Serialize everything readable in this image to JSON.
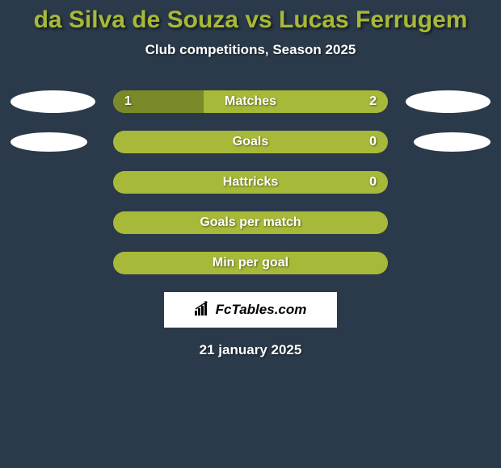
{
  "title": "da Silva de Souza vs Lucas Ferrugem",
  "subtitle": "Club competitions, Season 2025",
  "date": "21 january 2025",
  "logo": "FcTables.com",
  "colors": {
    "background": "#2a3a4a",
    "bar_base": "#a8b838",
    "bar_fill": "#7a8a28",
    "title_color": "#a8b838",
    "text_color": "#ffffff",
    "ellipse_color": "#ffffff"
  },
  "rows": [
    {
      "label": "Matches",
      "left_val": "1",
      "right_val": "2",
      "left_pct": 33,
      "fill_color": "#7a8a28",
      "left_ellipse": "large",
      "right_ellipse": "large"
    },
    {
      "label": "Goals",
      "left_val": "",
      "right_val": "0",
      "left_pct": 0,
      "fill_color": "#7a8a28",
      "left_ellipse": "small",
      "right_ellipse": "small"
    },
    {
      "label": "Hattricks",
      "left_val": "",
      "right_val": "0",
      "left_pct": 0,
      "fill_color": "#7a8a28",
      "left_ellipse": "none",
      "right_ellipse": "none"
    },
    {
      "label": "Goals per match",
      "left_val": "",
      "right_val": "",
      "left_pct": 0,
      "fill_color": "#7a8a28",
      "left_ellipse": "none",
      "right_ellipse": "none"
    },
    {
      "label": "Min per goal",
      "left_val": "",
      "right_val": "",
      "left_pct": 0,
      "fill_color": "#7a8a28",
      "left_ellipse": "none",
      "right_ellipse": "none"
    }
  ]
}
